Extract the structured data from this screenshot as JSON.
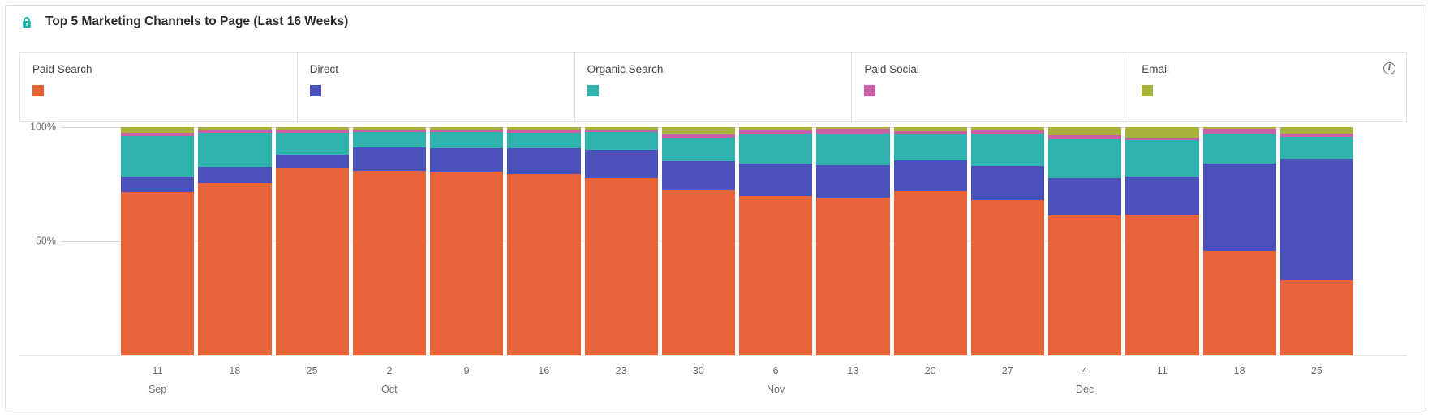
{
  "panel": {
    "title": "Top 5 Marketing Channels to Page (Last 16 Weeks)"
  },
  "icons": {
    "lock": {
      "color": "#12b5ac"
    },
    "info": {
      "glyph": "i",
      "color": "#6e6e6e"
    }
  },
  "chart_data": {
    "type": "bar",
    "subtype": "100pct-stacked-column",
    "title": "Top 5 Marketing Channels to Page (Last 16 Weeks)",
    "unit": "%",
    "grid": "horizontal",
    "legend_position": "top",
    "y_axis": {
      "min": 0,
      "max": 100,
      "ticks": [
        {
          "label": "100%",
          "value": 100
        },
        {
          "label": "50%",
          "value": 50
        }
      ]
    },
    "categories": [
      {
        "day": "11",
        "month": "Sep"
      },
      {
        "day": "18"
      },
      {
        "day": "25"
      },
      {
        "day": "2",
        "month": "Oct"
      },
      {
        "day": "9"
      },
      {
        "day": "16"
      },
      {
        "day": "23"
      },
      {
        "day": "30"
      },
      {
        "day": "6",
        "month": "Nov"
      },
      {
        "day": "13"
      },
      {
        "day": "20"
      },
      {
        "day": "27"
      },
      {
        "day": "4",
        "month": "Dec"
      },
      {
        "day": "11"
      },
      {
        "day": "18"
      },
      {
        "day": "25"
      }
    ],
    "series": [
      {
        "name": "Paid Search",
        "color": "#e8633a",
        "values": [
          71.5,
          75.5,
          82.0,
          81.0,
          80.5,
          79.5,
          77.5,
          72.3,
          70.0,
          69.0,
          72.0,
          68.2,
          61.3,
          61.8,
          45.7,
          32.8
        ]
      },
      {
        "name": "Direct",
        "color": "#4b51bb",
        "values": [
          7.0,
          7.0,
          6.0,
          10.3,
          10.2,
          11.2,
          12.7,
          12.7,
          14.0,
          14.5,
          13.4,
          14.6,
          16.3,
          16.4,
          38.3,
          53.5
        ]
      },
      {
        "name": "Organic Search",
        "color": "#2fb3af",
        "values": [
          17.5,
          15.0,
          9.5,
          6.5,
          7.0,
          6.8,
          7.6,
          10.3,
          13.0,
          13.7,
          11.3,
          14.4,
          16.9,
          16.0,
          12.8,
          9.3
        ]
      },
      {
        "name": "Paid Social",
        "color": "#ca61a6",
        "values": [
          1.5,
          1.2,
          1.5,
          1.2,
          1.3,
          1.5,
          1.3,
          1.4,
          1.5,
          2.0,
          1.5,
          1.5,
          1.8,
          1.2,
          2.6,
          1.4
        ]
      },
      {
        "name": "Email",
        "color": "#a9b33c",
        "values": [
          2.5,
          1.3,
          1.0,
          1.0,
          1.0,
          1.0,
          0.9,
          3.3,
          1.5,
          0.8,
          1.8,
          1.3,
          3.7,
          4.6,
          0.6,
          3.0
        ]
      }
    ]
  }
}
